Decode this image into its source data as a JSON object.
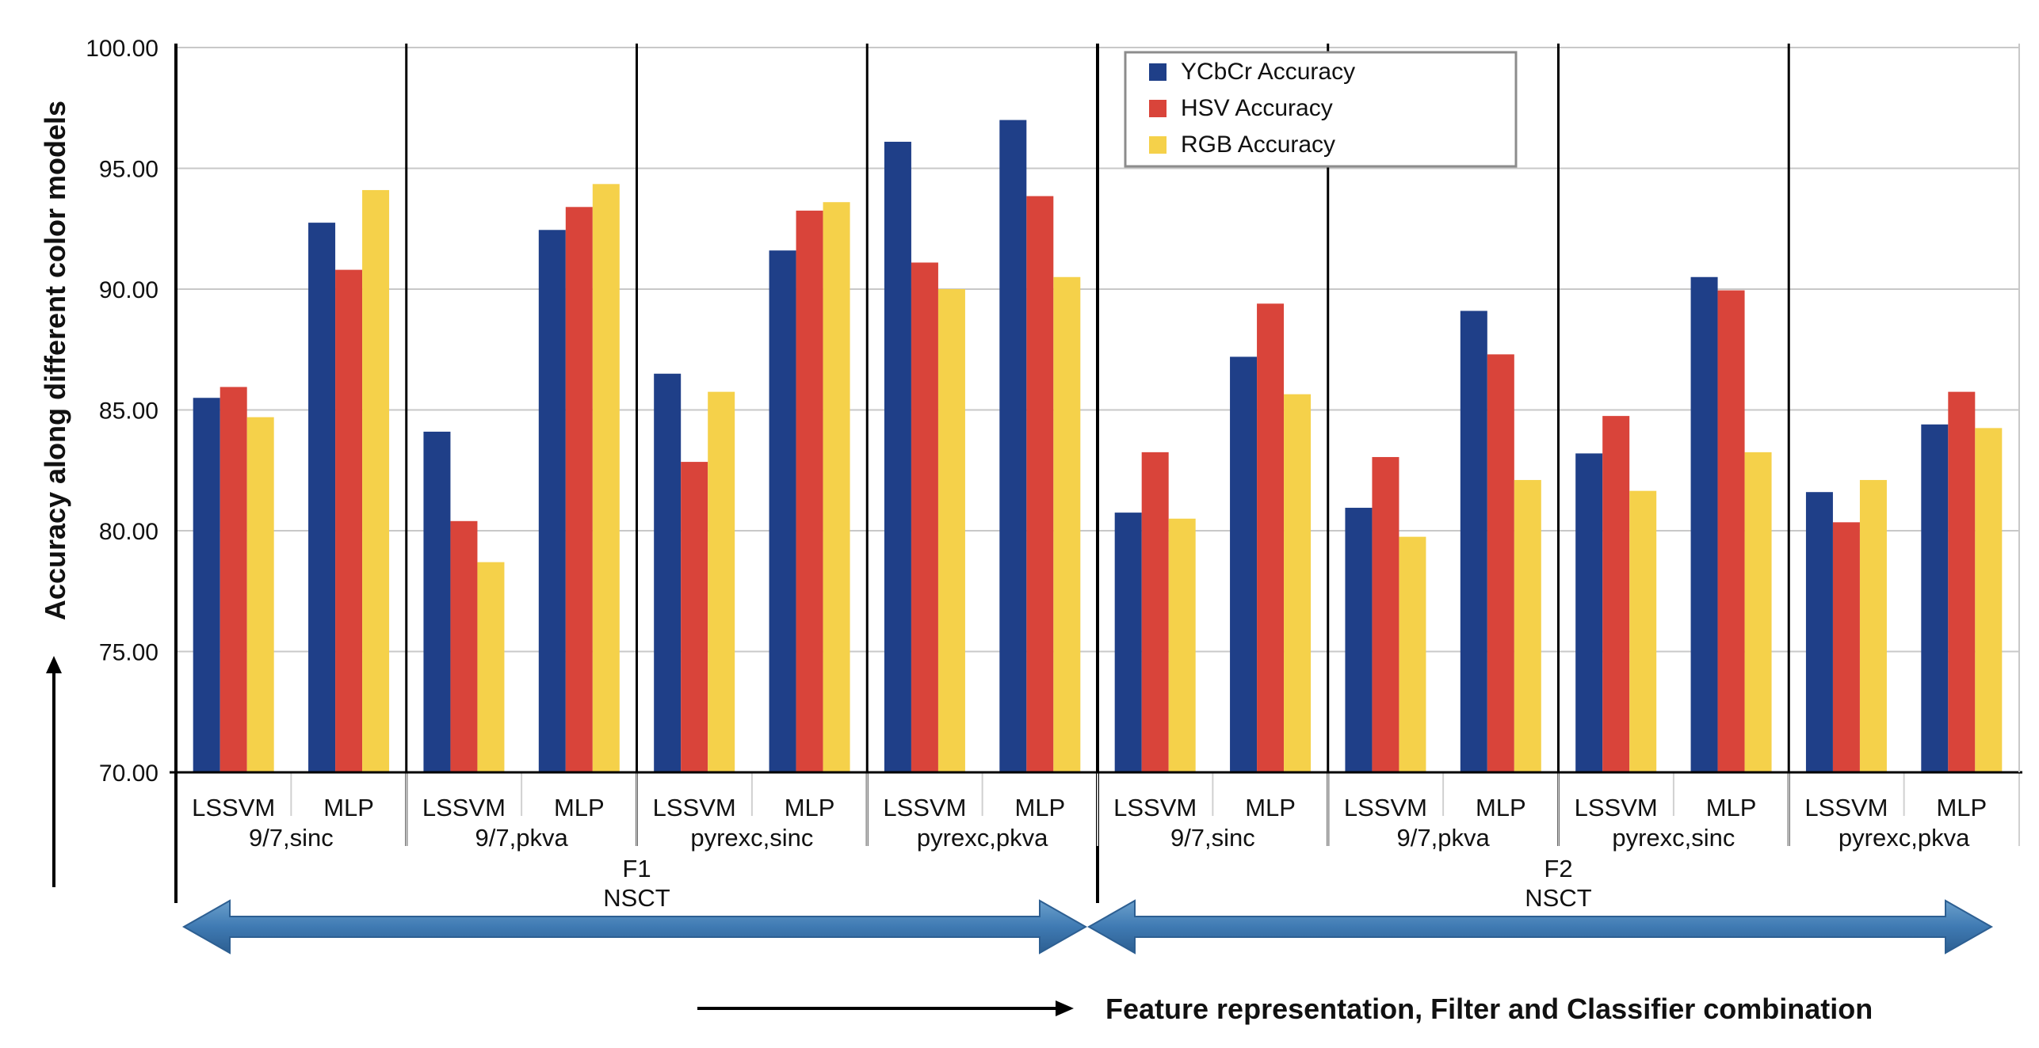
{
  "chart_data": {
    "type": "bar",
    "ylabel": "Accuracy along different color models",
    "xlabel": "Feature representation, Filter and Classifier combination",
    "ylim": [
      70,
      100
    ],
    "yticks": [
      "70.00",
      "75.00",
      "80.00",
      "85.00",
      "90.00",
      "95.00",
      "100.00"
    ],
    "grid": true,
    "legend_position": "top-center",
    "series": [
      {
        "name": "YCbCr Accuracy",
        "color": "#1f3f88",
        "values": [
          85.5,
          92.75,
          84.1,
          92.45,
          86.5,
          91.6,
          96.1,
          97.0,
          80.75,
          87.2,
          80.95,
          89.1,
          83.2,
          90.5,
          81.6,
          84.4
        ]
      },
      {
        "name": "HSV Accuracy",
        "color": "#d9443a",
        "values": [
          85.95,
          90.8,
          80.4,
          93.4,
          82.85,
          93.25,
          91.1,
          93.85,
          83.25,
          89.4,
          83.05,
          87.3,
          84.75,
          89.95,
          80.35,
          85.75
        ]
      },
      {
        "name": "RGB Accuracy",
        "color": "#f5d14a",
        "values": [
          84.7,
          94.1,
          78.7,
          94.35,
          85.75,
          93.6,
          90.0,
          90.5,
          80.5,
          85.65,
          79.75,
          82.1,
          81.65,
          83.25,
          82.1,
          84.25
        ]
      }
    ],
    "categories": [
      "LSSVM",
      "MLP",
      "LSSVM",
      "MLP",
      "LSSVM",
      "MLP",
      "LSSVM",
      "MLP",
      "LSSVM",
      "MLP",
      "LSSVM",
      "MLP",
      "LSSVM",
      "MLP",
      "LSSVM",
      "MLP"
    ],
    "filter_groups": [
      "9/7,sinc",
      "9/7,pkva",
      "pyrexc,sinc",
      "pyrexc,pkva",
      "9/7,sinc",
      "9/7,pkva",
      "pyrexc,sinc",
      "pyrexc,pkva"
    ],
    "feature_groups": [
      {
        "name": "F1",
        "method": "NSCT"
      },
      {
        "name": "F2",
        "method": "NSCT"
      }
    ]
  }
}
